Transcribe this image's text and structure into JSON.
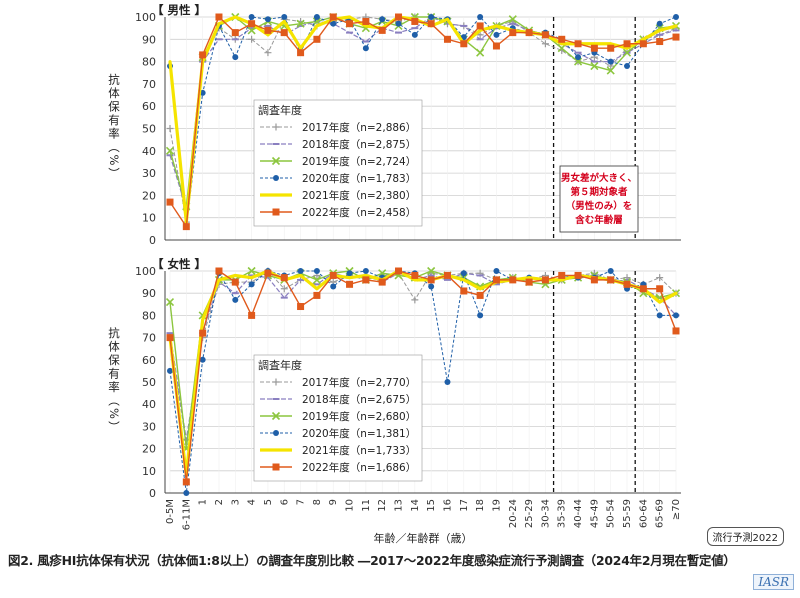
{
  "caption": "図2. 風疹HI抗体保有状況（抗体価1:8以上）の調査年度別比較 ―2017～2022年度感染症流行予測調査（2024年2月現在暫定値）",
  "corner_tag": "流行予測2022",
  "watermark": "IASR",
  "chart_data": [
    {
      "type": "line",
      "panel_label": "【 男性 】",
      "ylabel": "抗体保有率（%）",
      "xlabel": "",
      "ylim": [
        0,
        100
      ],
      "yticks": [
        0,
        10,
        20,
        30,
        40,
        50,
        60,
        70,
        80,
        90,
        100
      ],
      "legend_title": "調査年度",
      "legend_placement": "left-middle",
      "annotation": "男女差が大きく、第５期対象者（男性のみ）を含む年齢層",
      "annotation_range": [
        "35-39",
        "55-59"
      ],
      "series": [
        {
          "name": "2017年度（n=2,886）",
          "color": "#9a9a9a",
          "values": [
            50,
            8,
            80,
            95,
            90,
            90,
            84,
            99,
            98,
            96,
            98,
            99,
            100,
            99,
            98,
            100,
            100,
            97,
            96,
            92,
            96,
            98,
            93,
            88,
            85,
            80,
            82,
            78,
            86,
            90,
            92,
            95
          ]
        },
        {
          "name": "2018年度（n=2,875）",
          "color": "#8a7fc0",
          "values": [
            38,
            14,
            80,
            90,
            90,
            95,
            96,
            92,
            96,
            98,
            97,
            93,
            89,
            95,
            93,
            95,
            100,
            97,
            96,
            90,
            95,
            97,
            94,
            92,
            88,
            84,
            80,
            80,
            84,
            88,
            92,
            94
          ]
        },
        {
          "name": "2019年度（n=2,724）",
          "color": "#8cc63f",
          "values": [
            40,
            15,
            82,
            96,
            100,
            94,
            98,
            96,
            97,
            98,
            100,
            97,
            95,
            98,
            96,
            100,
            100,
            98,
            90,
            84,
            96,
            99,
            94,
            92,
            86,
            80,
            78,
            76,
            84,
            90,
            95,
            96
          ]
        },
        {
          "name": "2020年度（n=1,783）",
          "color": "#1f5fa8",
          "values": [
            78,
            6,
            66,
            96,
            82,
            100,
            99,
            100,
            84,
            100,
            97,
            99,
            86,
            99,
            97,
            92,
            100,
            99,
            91,
            100,
            92,
            95,
            93,
            93,
            90,
            82,
            84,
            80,
            78,
            88,
            97,
            100
          ]
        },
        {
          "name": "2021年度（n=2,380）",
          "color": "#f5e400",
          "values": [
            80,
            8,
            80,
            97,
            100,
            97,
            92,
            98,
            86,
            96,
            99,
            100,
            96,
            95,
            100,
            99,
            96,
            99,
            88,
            94,
            96,
            94,
            93,
            92,
            88,
            88,
            88,
            88,
            86,
            90,
            94,
            96
          ]
        },
        {
          "name": "2022年度（n=2,458）",
          "color": "#e05a1c",
          "values": [
            17,
            6,
            83,
            100,
            93,
            97,
            94,
            93,
            84,
            90,
            100,
            97,
            98,
            94,
            100,
            98,
            97,
            90,
            88,
            96,
            87,
            93,
            93,
            92,
            90,
            88,
            86,
            86,
            88,
            88,
            89,
            91
          ]
        }
      ]
    },
    {
      "type": "line",
      "panel_label": "【 女性 】",
      "ylabel": "抗体保有率（%）",
      "xlabel": "年齢／年齢群（歳）",
      "ylim": [
        0,
        100
      ],
      "yticks": [
        0,
        10,
        20,
        30,
        40,
        50,
        60,
        70,
        80,
        90,
        100
      ],
      "legend_title": "調査年度",
      "legend_placement": "left-bottom",
      "categories": [
        "0-5M",
        "6-11M",
        "1",
        "2",
        "3",
        "4",
        "5",
        "6",
        "7",
        "8",
        "9",
        "10",
        "11",
        "12",
        "13",
        "14",
        "15",
        "16",
        "17",
        "18",
        "19",
        "20-24",
        "25-29",
        "30-34",
        "35-39",
        "40-44",
        "45-49",
        "50-54",
        "55-59",
        "60-64",
        "65-69",
        "≥70"
      ],
      "series": [
        {
          "name": "2017年度（n=2,770）",
          "color": "#9a9a9a",
          "values": [
            70,
            22,
            70,
            94,
            95,
            95,
            100,
            92,
            96,
            98,
            95,
            98,
            96,
            98,
            99,
            87,
            99,
            98,
            99,
            99,
            96,
            97,
            96,
            98,
            96,
            98,
            99,
            96,
            97,
            94,
            97,
            90
          ]
        },
        {
          "name": "2018年度（n=2,675）",
          "color": "#8a7fc0",
          "values": [
            72,
            24,
            72,
            95,
            90,
            98,
            97,
            88,
            96,
            94,
            99,
            97,
            98,
            95,
            99,
            96,
            98,
            96,
            99,
            98,
            94,
            96,
            97,
            96,
            96,
            98,
            98,
            95,
            96,
            92,
            88,
            80
          ]
        },
        {
          "name": "2019年度（n=2,680）",
          "color": "#8cc63f",
          "values": [
            86,
            20,
            80,
            96,
            96,
            100,
            98,
            96,
            99,
            96,
            99,
            100,
            96,
            99,
            98,
            97,
            100,
            98,
            97,
            93,
            96,
            97,
            95,
            94,
            96,
            97,
            98,
            96,
            95,
            90,
            88,
            90
          ]
        },
        {
          "name": "2020年度（n=1,381）",
          "color": "#1f5fa8",
          "values": [
            55,
            0,
            60,
            99,
            87,
            94,
            100,
            98,
            100,
            100,
            93,
            99,
            100,
            97,
            100,
            99,
            93,
            50,
            99,
            80,
            100,
            96,
            97,
            96,
            98,
            97,
            97,
            100,
            92,
            94,
            80,
            80
          ]
        },
        {
          "name": "2021年度（n=1,733）",
          "color": "#f5e400",
          "values": [
            70,
            8,
            78,
            96,
            98,
            97,
            100,
            96,
            98,
            92,
            98,
            97,
            98,
            96,
            100,
            96,
            96,
            98,
            96,
            92,
            95,
            96,
            97,
            96,
            96,
            98,
            97,
            96,
            94,
            92,
            86,
            90
          ]
        },
        {
          "name": "2022年度（n=1,686）",
          "color": "#e05a1c",
          "values": [
            70,
            5,
            72,
            100,
            95,
            80,
            99,
            97,
            84,
            89,
            98,
            94,
            96,
            95,
            100,
            98,
            96,
            98,
            91,
            89,
            96,
            96,
            95,
            96,
            98,
            98,
            96,
            96,
            94,
            92,
            92,
            73
          ]
        }
      ]
    }
  ]
}
